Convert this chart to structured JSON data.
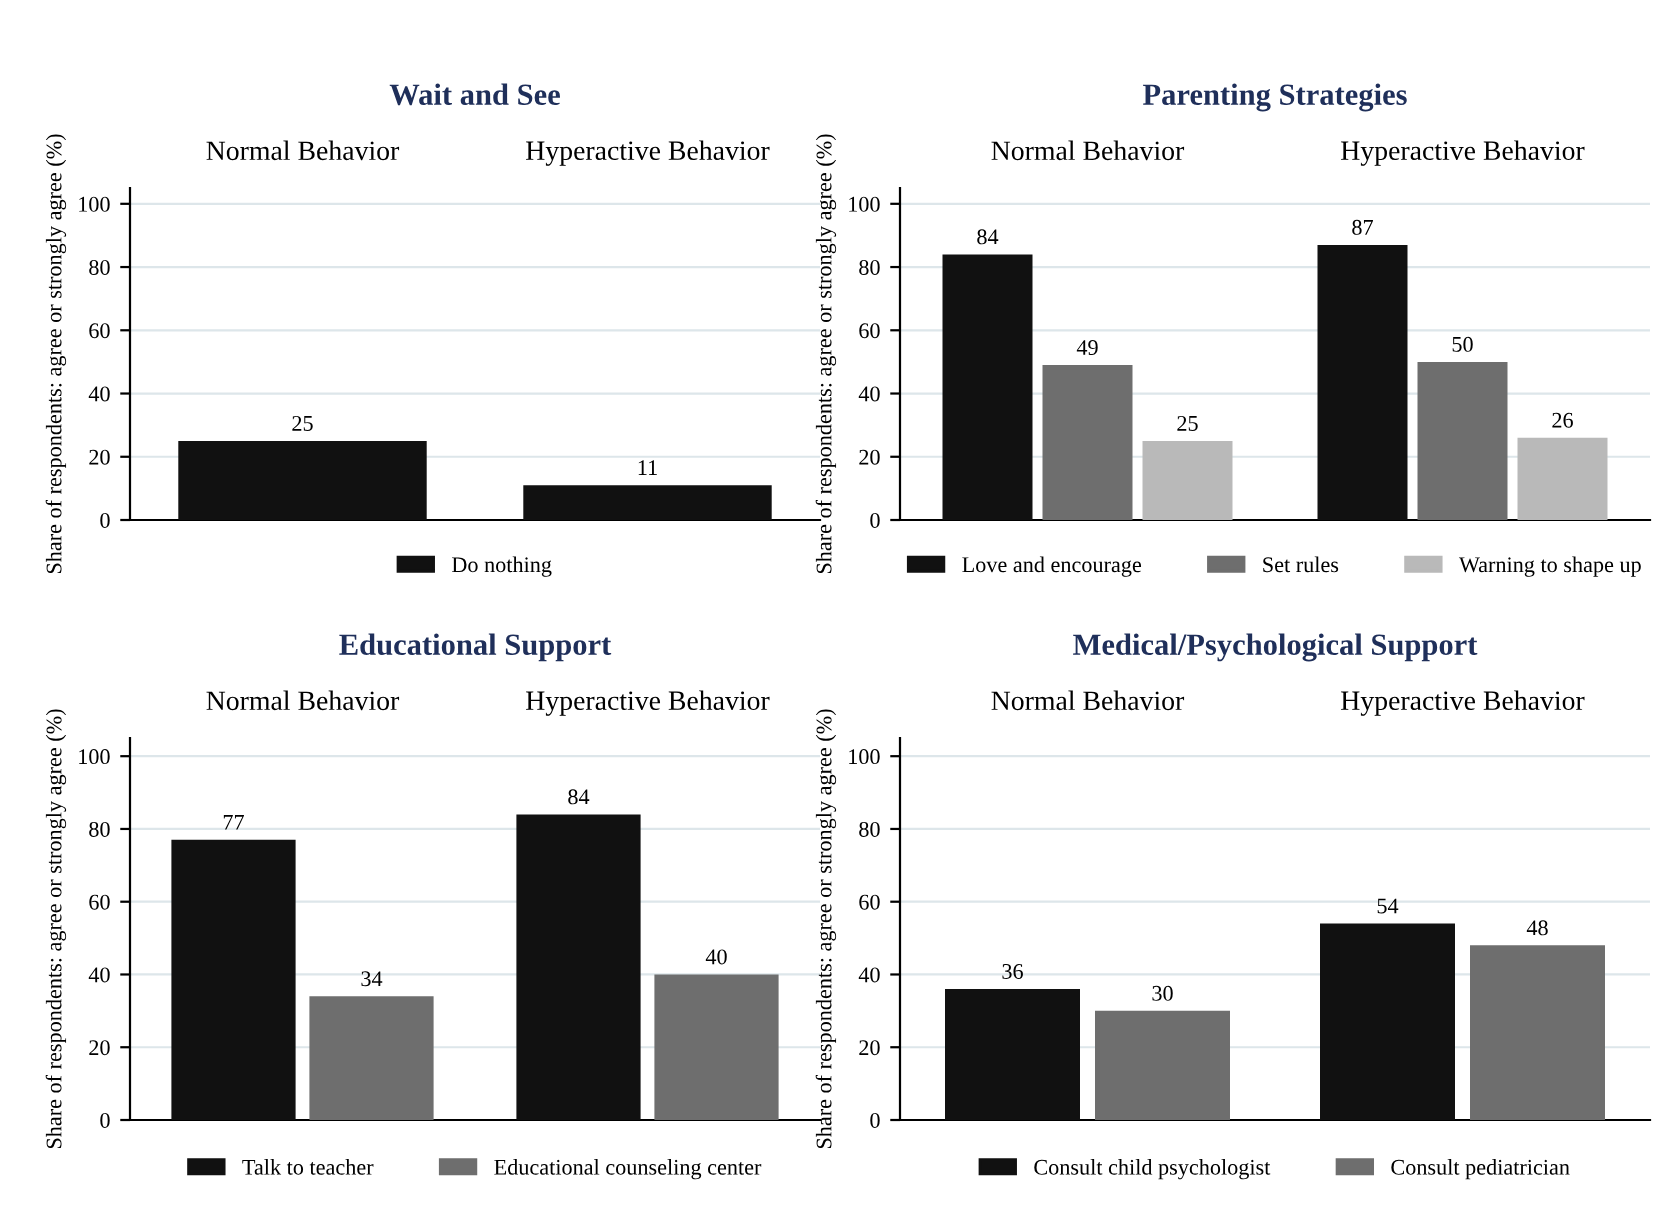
{
  "chart_data": [
    {
      "type": "bar",
      "title": "Wait and See",
      "ylabel": "Share of respondents: agree or strongly agree (%)",
      "categories": [
        "Normal Behavior",
        "Hyperactive Behavior"
      ],
      "ylim": [
        0,
        105
      ],
      "yticks": [
        0,
        20,
        40,
        60,
        80,
        100
      ],
      "grid": "y",
      "data_labels": true,
      "legend": "bottom",
      "series": [
        {
          "name": "Do nothing",
          "color": "#111111",
          "values": [
            25,
            11
          ]
        }
      ]
    },
    {
      "type": "bar",
      "title": "Parenting Strategies",
      "ylabel": "Share of respondents: agree or strongly agree (%)",
      "categories": [
        "Normal Behavior",
        "Hyperactive Behavior"
      ],
      "ylim": [
        0,
        105
      ],
      "yticks": [
        0,
        20,
        40,
        60,
        80,
        100
      ],
      "grid": "y",
      "data_labels": true,
      "legend": "bottom",
      "series": [
        {
          "name": "Love and encourage",
          "color": "#111111",
          "values": [
            84,
            87
          ]
        },
        {
          "name": "Set rules",
          "color": "#6e6e6e",
          "values": [
            49,
            50
          ]
        },
        {
          "name": "Warning to shape up",
          "color": "#b9b9b9",
          "values": [
            25,
            26
          ]
        }
      ]
    },
    {
      "type": "bar",
      "title": "Educational Support",
      "ylabel": "Share of respondents: agree or strongly agree (%)",
      "categories": [
        "Normal Behavior",
        "Hyperactive Behavior"
      ],
      "ylim": [
        0,
        105
      ],
      "yticks": [
        0,
        20,
        40,
        60,
        80,
        100
      ],
      "grid": "y",
      "data_labels": true,
      "legend": "bottom",
      "series": [
        {
          "name": "Talk to teacher",
          "color": "#111111",
          "values": [
            77,
            84
          ]
        },
        {
          "name": "Educational counseling center",
          "color": "#6e6e6e",
          "values": [
            34,
            40
          ]
        }
      ]
    },
    {
      "type": "bar",
      "title": "Medical/Psychological Support",
      "ylabel": "Share of respondents: agree or strongly agree (%)",
      "categories": [
        "Normal Behavior",
        "Hyperactive Behavior"
      ],
      "ylim": [
        0,
        105
      ],
      "yticks": [
        0,
        20,
        40,
        60,
        80,
        100
      ],
      "grid": "y",
      "data_labels": true,
      "legend": "bottom",
      "series": [
        {
          "name": "Consult child psychologist",
          "color": "#111111",
          "values": [
            36,
            54
          ]
        },
        {
          "name": "Consult pediatrician",
          "color": "#6e6e6e",
          "values": [
            30,
            48
          ]
        }
      ]
    }
  ]
}
